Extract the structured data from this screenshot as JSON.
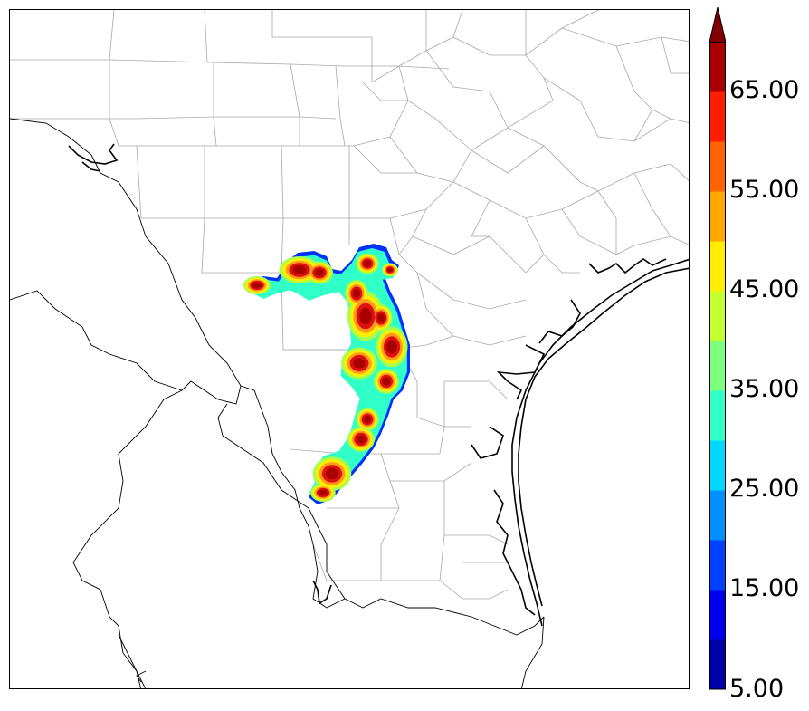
{
  "colorbar": {
    "labels": [
      "5.00",
      "15.00",
      "25.00",
      "35.00",
      "45.00",
      "55.00",
      "65.00"
    ],
    "levels": [
      5,
      10,
      15,
      20,
      25,
      30,
      35,
      40,
      45,
      50,
      55,
      60,
      65,
      70
    ],
    "colors": [
      "#0000a8",
      "#0000f0",
      "#0040ff",
      "#0090ff",
      "#00d8ff",
      "#30ffc8",
      "#7cff7c",
      "#c4ff30",
      "#ffee00",
      "#ffa800",
      "#ff6400",
      "#ff1e00",
      "#a80000"
    ],
    "extend_color": "#800000"
  },
  "field_colors": {
    "outline": "#0030ff",
    "low": "#30ffc8",
    "mid": "#a6ff4a",
    "yellow": "#ffee00",
    "orange": "#ff9a1a",
    "red": "#e01010",
    "darkred": "#a80000"
  },
  "map_colors": {
    "county_line": "#a8a8a8",
    "coast_line": "#000000",
    "border_line": "#000000"
  }
}
